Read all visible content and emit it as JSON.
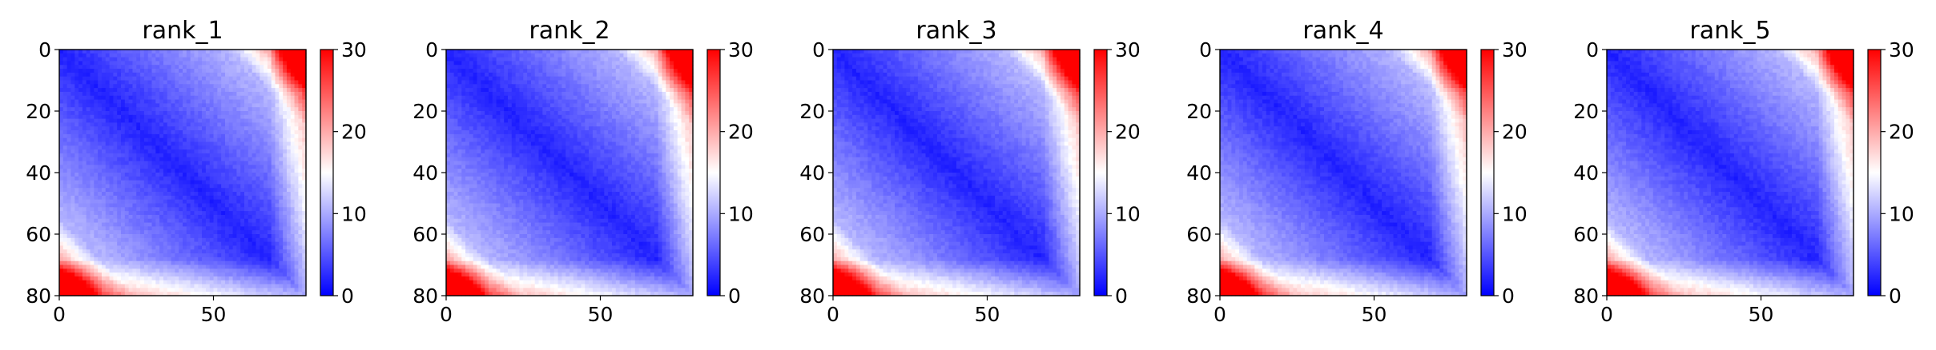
{
  "chart_data": [
    {
      "type": "heatmap",
      "title": "rank_1",
      "xlim": [
        0,
        80
      ],
      "ylim": [
        80,
        0
      ],
      "x_ticks": [
        0,
        50
      ],
      "y_ticks": [
        0,
        20,
        40,
        60,
        80
      ],
      "colormap": "bwr",
      "color_range": [
        0,
        30
      ],
      "colorbar_ticks": [
        0,
        10,
        20,
        30
      ],
      "colors": {
        "low": "#0000ff",
        "mid": "#ffffff",
        "high": "#ff0000"
      },
      "pattern": "pairwise distance matrix: ~0 along the diagonal, blue (<10) across most of the grid, red (~30) in the top-right and bottom-left corner bands"
    },
    {
      "type": "heatmap",
      "title": "rank_2",
      "xlim": [
        0,
        80
      ],
      "ylim": [
        80,
        0
      ],
      "x_ticks": [
        0,
        50
      ],
      "y_ticks": [
        0,
        20,
        40,
        60,
        80
      ],
      "colormap": "bwr",
      "color_range": [
        0,
        30
      ],
      "colorbar_ticks": [
        0,
        10,
        20,
        30
      ],
      "colors": {
        "low": "#0000ff",
        "mid": "#ffffff",
        "high": "#ff0000"
      }
    },
    {
      "type": "heatmap",
      "title": "rank_3",
      "xlim": [
        0,
        80
      ],
      "ylim": [
        80,
        0
      ],
      "x_ticks": [
        0,
        50
      ],
      "y_ticks": [
        0,
        20,
        40,
        60,
        80
      ],
      "colormap": "bwr",
      "color_range": [
        0,
        30
      ],
      "colorbar_ticks": [
        0,
        10,
        20,
        30
      ],
      "colors": {
        "low": "#0000ff",
        "mid": "#ffffff",
        "high": "#ff0000"
      }
    },
    {
      "type": "heatmap",
      "title": "rank_4",
      "xlim": [
        0,
        80
      ],
      "ylim": [
        80,
        0
      ],
      "x_ticks": [
        0,
        50
      ],
      "y_ticks": [
        0,
        20,
        40,
        60,
        80
      ],
      "colormap": "bwr",
      "color_range": [
        0,
        30
      ],
      "colorbar_ticks": [
        0,
        10,
        20,
        30
      ],
      "colors": {
        "low": "#0000ff",
        "mid": "#ffffff",
        "high": "#ff0000"
      }
    },
    {
      "type": "heatmap",
      "title": "rank_5",
      "xlim": [
        0,
        80
      ],
      "ylim": [
        80,
        0
      ],
      "x_ticks": [
        0,
        50
      ],
      "y_ticks": [
        0,
        20,
        40,
        60,
        80
      ],
      "colormap": "bwr",
      "color_range": [
        0,
        30
      ],
      "colorbar_ticks": [
        0,
        10,
        20,
        30
      ],
      "colors": {
        "low": "#0000ff",
        "mid": "#ffffff",
        "high": "#ff0000"
      }
    }
  ]
}
